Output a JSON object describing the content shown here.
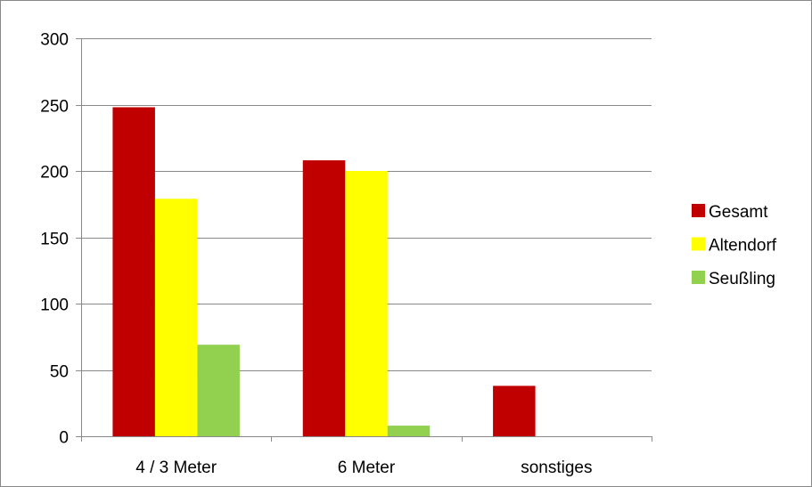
{
  "chart_data": {
    "type": "bar",
    "title": "",
    "xlabel": "",
    "ylabel": "",
    "categories": [
      "4 / 3 Meter",
      "6 Meter",
      "sonstiges"
    ],
    "series": [
      {
        "name": "Gesamt",
        "color": "#C00000",
        "values": [
          248,
          208,
          38
        ]
      },
      {
        "name": "Altendorf",
        "color": "#FFFF00",
        "values": [
          179,
          200,
          0
        ]
      },
      {
        "name": "Seußling",
        "color": "#92D050",
        "values": [
          69,
          8,
          0
        ]
      }
    ],
    "ylim": [
      0,
      300
    ],
    "yticks": [
      0,
      50,
      100,
      150,
      200,
      250,
      300
    ],
    "grid": true,
    "legend_position": "right"
  }
}
